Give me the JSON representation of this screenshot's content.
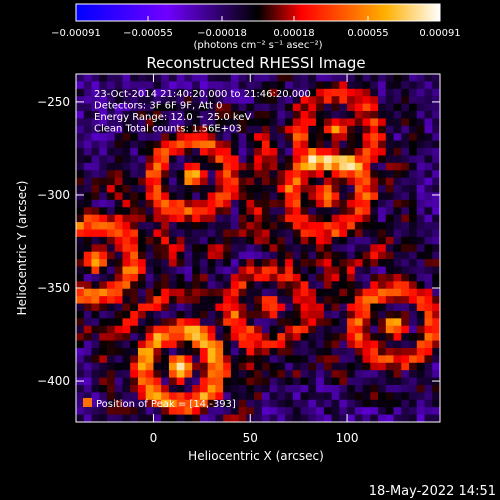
{
  "chart_data": {
    "type": "heatmap",
    "title": "Reconstructed RHESSI Image",
    "xlabel": "Heliocentric X (arcsec)",
    "ylabel": "Heliocentric Y (arcsec)",
    "xlim": [
      -40,
      148
    ],
    "ylim": [
      -422,
      -235
    ],
    "x_ticks": [
      0,
      50,
      100
    ],
    "x_tick_labels": [
      "0",
      "50",
      "100"
    ],
    "y_ticks": [
      -250,
      -300,
      -350,
      -400
    ],
    "y_tick_labels": [
      "−250",
      "−300",
      "−350",
      "−400"
    ],
    "colorbar": {
      "min": -0.00091,
      "max": 0.00091,
      "ticks": [
        -0.00091,
        -0.00055,
        -0.00018,
        0.00018,
        0.00055,
        0.00091
      ],
      "tick_labels": [
        "−0.00091",
        "−0.00055",
        "−0.00018",
        "0.00018",
        "0.00055",
        "0.00091"
      ],
      "unit_label": "(photons cm⁻² s⁻¹ asec⁻²)",
      "colors": [
        "#0000ff",
        "#6a00ff",
        "#000000",
        "#ff0000",
        "#ffa000",
        "#ffffff"
      ]
    },
    "annotations": [
      "23-Oct-2014 21:40:20.000 to 21:46:20.000",
      "Detectors: 3F 6F 9F, Att 0",
      "Energy Range: 12.0 − 25.0 keV",
      "Clean     Total counts: 1.56E+03"
    ],
    "peak_label": "Position of Peak = [14,-393]",
    "peak": [
      14,
      -393
    ],
    "grid": false,
    "grid_size": [
      47,
      47
    ],
    "bright_regions": [
      {
        "x": 14,
        "y": -393,
        "amp": 1.0
      },
      {
        "x": -30,
        "y": -335,
        "amp": 0.85
      },
      {
        "x": 20,
        "y": -290,
        "amp": 0.75
      },
      {
        "x": 90,
        "y": -300,
        "amp": 0.7
      },
      {
        "x": 125,
        "y": -370,
        "amp": 0.75
      },
      {
        "x": 95,
        "y": -265,
        "amp": 0.6
      },
      {
        "x": 60,
        "y": -360,
        "amp": 0.55
      }
    ]
  },
  "footer": {
    "date": "18-May-2022 14:51"
  }
}
